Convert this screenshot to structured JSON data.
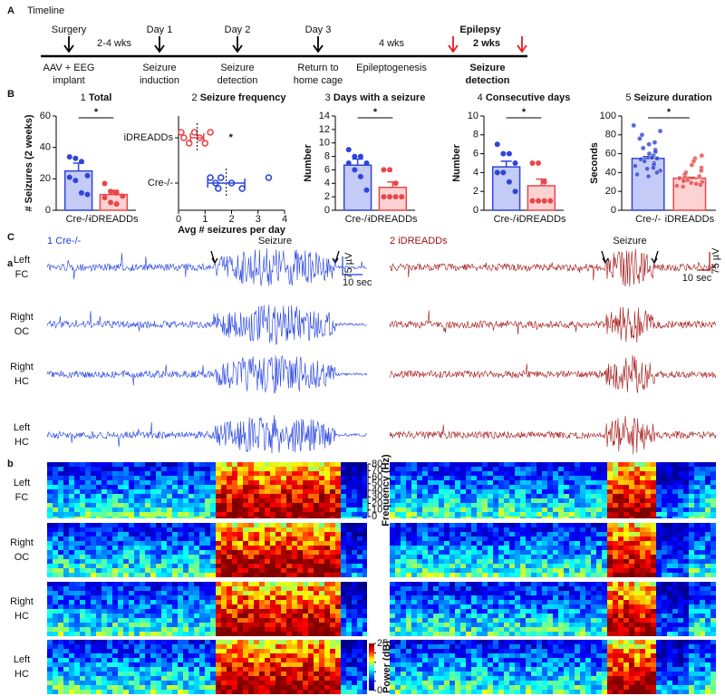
{
  "panel_labels": {
    "A": "A",
    "B": "B",
    "C": "C",
    "a": "a",
    "b": "b"
  },
  "timeline": {
    "title": "Timeline",
    "events": [
      {
        "label": "Surgery",
        "caption": [
          "AAV + EEG",
          "implant"
        ]
      },
      {
        "label": "Day 1",
        "caption": [
          "Seizure",
          "induction"
        ]
      },
      {
        "label": "Day 2",
        "caption": [
          "Seizure",
          "detection"
        ]
      },
      {
        "label": "Day 3",
        "caption": [
          "Return to",
          "home cage"
        ]
      }
    ],
    "intervals": [
      "2-4 wks",
      "4 wks"
    ],
    "phase": "Epileptogenesis",
    "epilepsy": {
      "label": "Epilepsy",
      "interval": "2 wks",
      "caption": [
        "Seizure",
        "detection"
      ],
      "color": "#e8191f"
    }
  },
  "chart_data": [
    {
      "type": "bar",
      "number": "1",
      "title": "Total",
      "ylabel": "# Seizures (2 weeks)",
      "categories": [
        "Cre-/-",
        "iDREADDs"
      ],
      "values": [
        25,
        10
      ],
      "errors": [
        5,
        2.7
      ],
      "points": [
        [
          34,
          33,
          31,
          22,
          21,
          19,
          11,
          10
        ],
        [
          17,
          12,
          11,
          9,
          8,
          5,
          4
        ]
      ],
      "colors": [
        "#2f45d8",
        "#e8474a"
      ],
      "fills": [
        "#c4cbf6",
        "#fcd2d2"
      ],
      "ylim": [
        0,
        60
      ],
      "yticks": [
        0,
        20,
        40,
        60
      ],
      "significance": "*"
    },
    {
      "type": "dot",
      "number": "2",
      "title": "Seizure frequency",
      "xlabel": "Avg # seizures per day",
      "categories": [
        "iDREADDs",
        "Cre-/-"
      ],
      "points": [
        [
          0.1,
          0.2,
          0.4,
          0.6,
          0.8,
          1.0,
          1.2
        ],
        [
          1.2,
          1.4,
          1.5,
          1.6,
          2.0,
          2.4,
          3.4
        ]
      ],
      "means": [
        0.7,
        1.8
      ],
      "errors": [
        0.25,
        0.7
      ],
      "colors": [
        "#e8474a",
        "#2f45d8"
      ],
      "xlim": [
        0,
        4
      ],
      "xticks": [
        0,
        1,
        2,
        3,
        4
      ],
      "significance": "*"
    },
    {
      "type": "bar",
      "number": "3",
      "title": "Days with a seizure",
      "ylabel": "Number",
      "categories": [
        "Cre-/-",
        "iDREADDs"
      ],
      "values": [
        6.7,
        3.4
      ],
      "errors": [
        0.9,
        0.8
      ],
      "points": [
        [
          9,
          8,
          8,
          7,
          7,
          6,
          5,
          3
        ],
        [
          6,
          6,
          4,
          2,
          2,
          2,
          2
        ]
      ],
      "colors": [
        "#2f45d8",
        "#e8474a"
      ],
      "fills": [
        "#c4cbf6",
        "#fcd2d2"
      ],
      "ylim": [
        0,
        14
      ],
      "yticks": [
        0,
        2,
        4,
        6,
        8,
        10,
        12,
        14
      ],
      "significance": "*"
    },
    {
      "type": "bar",
      "number": "4",
      "title": "Consecutive days",
      "ylabel": "Number",
      "categories": [
        "Cre-/-",
        "iDREADDs"
      ],
      "values": [
        4.6,
        2.6
      ],
      "errors": [
        0.6,
        0.7
      ],
      "points": [
        [
          7,
          6,
          6,
          5,
          4,
          4,
          3,
          2
        ],
        [
          5,
          5,
          3,
          1,
          1,
          1,
          1
        ]
      ],
      "colors": [
        "#2f45d8",
        "#e8474a"
      ],
      "fills": [
        "#c4cbf6",
        "#fcd2d2"
      ],
      "ylim": [
        0,
        10
      ],
      "yticks": [
        0,
        2,
        4,
        6,
        8,
        10
      ],
      "significance": "*"
    },
    {
      "type": "bar",
      "number": "5",
      "title": "Seizure duration",
      "ylabel": "Seconds",
      "categories": [
        "Cre-/-",
        "iDREADDs"
      ],
      "values": [
        55,
        34
      ],
      "errors": [
        2,
        1
      ],
      "points": [
        [
          90,
          84,
          80,
          76,
          72,
          70,
          66,
          64,
          62,
          60,
          58,
          56,
          55,
          54,
          52,
          50,
          48,
          47,
          45,
          44,
          42,
          40,
          38,
          36
        ],
        [
          58,
          55,
          52,
          48,
          45,
          42,
          40,
          38,
          36,
          35,
          34,
          33,
          32,
          31,
          30,
          29,
          28,
          27,
          26,
          25
        ]
      ],
      "colors": [
        "#2f45d8",
        "#e8474a"
      ],
      "fills": [
        "#c4cbf6",
        "#fcd2d2"
      ],
      "ylim": [
        0,
        100
      ],
      "yticks": [
        0,
        20,
        40,
        60,
        80,
        100
      ],
      "significance": "*"
    }
  ],
  "eeg": {
    "groups": [
      {
        "number": "1",
        "name": "Cre-/-",
        "color": "#1f3de0"
      },
      {
        "number": "2",
        "name": "iDREADDs",
        "color": "#a31212"
      }
    ],
    "seizure_label": "Seizure",
    "channels": [
      [
        "Left",
        "FC"
      ],
      [
        "Right",
        "OC"
      ],
      [
        "Right",
        "HC"
      ],
      [
        "Left",
        "HC"
      ]
    ],
    "scale": {
      "voltage": "75 µV",
      "time": "10 sec"
    }
  },
  "spectrogram": {
    "ylabel": "Frequency (Hz)",
    "ylim": [
      0,
      80
    ],
    "yticks": [
      0,
      10,
      20,
      30,
      40,
      50,
      60,
      70,
      80
    ],
    "colorbar_label": "Power (dB)",
    "colorbar_lim": [
      0,
      25
    ],
    "colorbar_ticks": [
      0,
      5,
      10,
      15,
      20,
      25
    ]
  }
}
